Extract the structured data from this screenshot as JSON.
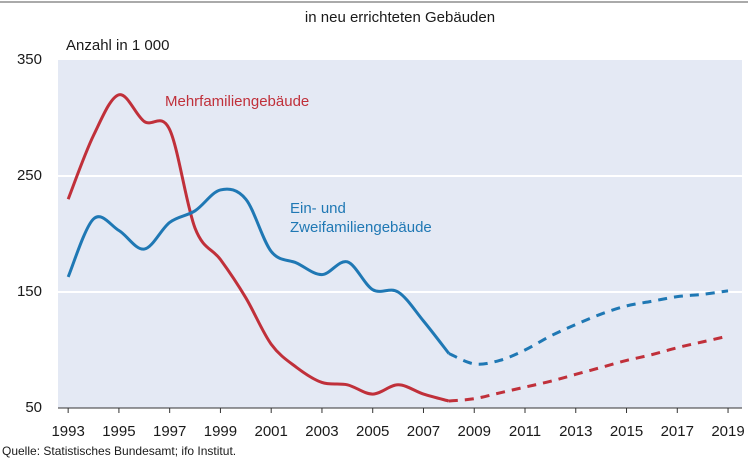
{
  "chart_data": {
    "type": "line",
    "title": "in neu errichteten Gebäuden",
    "y_axis_label": "Anzahl in 1 000",
    "source": "Quelle: Statistisches Bundesamt; ifo Institut.",
    "x": [
      1993,
      1994,
      1995,
      1996,
      1997,
      1998,
      1999,
      2000,
      2001,
      2002,
      2003,
      2004,
      2005,
      2006,
      2007,
      2008,
      2009,
      2010,
      2011,
      2012,
      2013,
      2014,
      2015,
      2016,
      2017,
      2018,
      2019
    ],
    "series": [
      {
        "name": "Mehrfamiliengebäude",
        "color": "#c0303a",
        "dashed_from": 2008,
        "values": [
          230,
          285,
          320,
          297,
          290,
          205,
          178,
          145,
          105,
          85,
          72,
          70,
          62,
          70,
          62,
          56,
          58,
          63,
          68,
          73,
          79,
          85,
          91,
          96,
          102,
          107,
          112
        ]
      },
      {
        "name": "Ein- und Zweifamiliengebäude",
        "color": "#1f78b4",
        "dashed_from": 2008,
        "values": [
          163,
          213,
          203,
          187,
          210,
          220,
          238,
          230,
          185,
          175,
          165,
          176,
          152,
          150,
          125,
          97,
          88,
          91,
          100,
          112,
          122,
          131,
          138,
          142,
          146,
          148,
          151
        ]
      }
    ],
    "xlim": [
      1992.6,
      2019.55
    ],
    "ylim": [
      50,
      350
    ],
    "xticks": [
      1993,
      1995,
      1997,
      1999,
      2001,
      2003,
      2005,
      2007,
      2009,
      2011,
      2013,
      2015,
      2017,
      2019
    ],
    "yticks": [
      50,
      150,
      250,
      350
    ],
    "grid": true
  }
}
